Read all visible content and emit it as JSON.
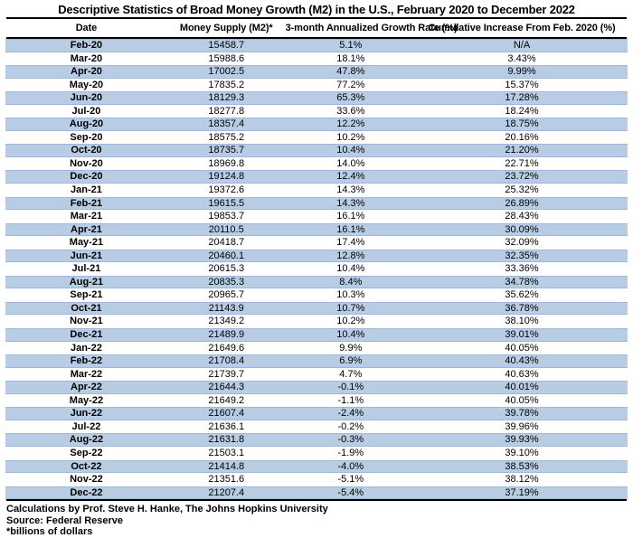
{
  "title": "Descriptive Statistics of Broad Money Growth (M2) in the U.S., February 2020 to December 2022",
  "chart_data": {
    "type": "table",
    "columns": [
      "Date",
      "Money Supply (M2)*",
      "3-month Annualized Growth Rate (%)",
      "Cumulative Increase From Feb. 2020 (%)"
    ],
    "rows": [
      [
        "Feb-20",
        "15458.7",
        "5.1%",
        "N/A"
      ],
      [
        "Mar-20",
        "15988.6",
        "18.1%",
        "3.43%"
      ],
      [
        "Apr-20",
        "17002.5",
        "47.8%",
        "9.99%"
      ],
      [
        "May-20",
        "17835.2",
        "77.2%",
        "15.37%"
      ],
      [
        "Jun-20",
        "18129.3",
        "65.3%",
        "17.28%"
      ],
      [
        "Jul-20",
        "18277.8",
        "33.6%",
        "18.24%"
      ],
      [
        "Aug-20",
        "18357.4",
        "12.2%",
        "18.75%"
      ],
      [
        "Sep-20",
        "18575.2",
        "10.2%",
        "20.16%"
      ],
      [
        "Oct-20",
        "18735.7",
        "10.4%",
        "21.20%"
      ],
      [
        "Nov-20",
        "18969.8",
        "14.0%",
        "22.71%"
      ],
      [
        "Dec-20",
        "19124.8",
        "12.4%",
        "23.72%"
      ],
      [
        "Jan-21",
        "19372.6",
        "14.3%",
        "25.32%"
      ],
      [
        "Feb-21",
        "19615.5",
        "14.3%",
        "26.89%"
      ],
      [
        "Mar-21",
        "19853.7",
        "16.1%",
        "28.43%"
      ],
      [
        "Apr-21",
        "20110.5",
        "16.1%",
        "30.09%"
      ],
      [
        "May-21",
        "20418.7",
        "17.4%",
        "32.09%"
      ],
      [
        "Jun-21",
        "20460.1",
        "12.8%",
        "32.35%"
      ],
      [
        "Jul-21",
        "20615.3",
        "10.4%",
        "33.36%"
      ],
      [
        "Aug-21",
        "20835.3",
        "8.4%",
        "34.78%"
      ],
      [
        "Sep-21",
        "20965.7",
        "10.3%",
        "35.62%"
      ],
      [
        "Oct-21",
        "21143.9",
        "10.7%",
        "36.78%"
      ],
      [
        "Nov-21",
        "21349.2",
        "10.2%",
        "38.10%"
      ],
      [
        "Dec-21",
        "21489.9",
        "10.4%",
        "39.01%"
      ],
      [
        "Jan-22",
        "21649.6",
        "9.9%",
        "40.05%"
      ],
      [
        "Feb-22",
        "21708.4",
        "6.9%",
        "40.43%"
      ],
      [
        "Mar-22",
        "21739.7",
        "4.7%",
        "40.63%"
      ],
      [
        "Apr-22",
        "21644.3",
        "-0.1%",
        "40.01%"
      ],
      [
        "May-22",
        "21649.2",
        "-1.1%",
        "40.05%"
      ],
      [
        "Jun-22",
        "21607.4",
        "-2.4%",
        "39.78%"
      ],
      [
        "Jul-22",
        "21636.1",
        "-0.2%",
        "39.96%"
      ],
      [
        "Aug-22",
        "21631.8",
        "-0.3%",
        "39.93%"
      ],
      [
        "Sep-22",
        "21503.1",
        "-1.9%",
        "39.10%"
      ],
      [
        "Oct-22",
        "21414.8",
        "-4.0%",
        "38.53%"
      ],
      [
        "Nov-22",
        "21351.6",
        "-5.1%",
        "38.12%"
      ],
      [
        "Dec-22",
        "21207.4",
        "-5.4%",
        "37.19%"
      ]
    ],
    "row_shading": "alternating, first data row shaded",
    "colors": {
      "row_fill": "#B8CCE4",
      "row_border": "#9FB8D9",
      "rule": "#000000",
      "text": "#000000",
      "background": "#FFFFFF"
    }
  },
  "footer": {
    "calculations": "Calculations by Prof. Steve H. Hanke, The Johns Hopkins University",
    "source": "Source: Federal Reserve",
    "units_note": "*billions of dollars"
  }
}
